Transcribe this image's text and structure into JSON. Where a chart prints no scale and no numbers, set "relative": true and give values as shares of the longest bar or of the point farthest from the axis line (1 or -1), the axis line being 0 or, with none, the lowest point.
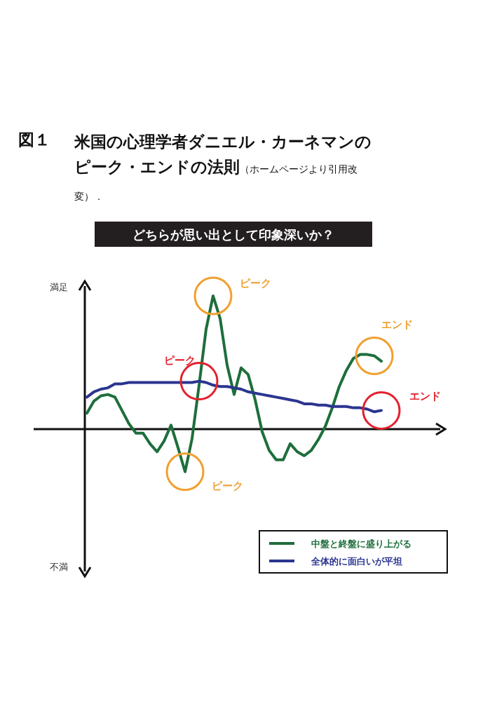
{
  "chart_data": {
    "type": "line",
    "title": "図１　米国の心理学者ダニエル・カーネマンのピーク・エンドの法則",
    "subtitle": "どちらが思い出として印象深いか？",
    "relative": true,
    "legend": "bottom right",
    "marker": "none",
    "categories": [
      null,
      null,
      null,
      null,
      null,
      null,
      null,
      null,
      null,
      null,
      null,
      null,
      null,
      null,
      null,
      null,
      null,
      null,
      null,
      null,
      null,
      null,
      null,
      null,
      null,
      null,
      null,
      null,
      null,
      null,
      null,
      null,
      null,
      null,
      null,
      null,
      null,
      null,
      null,
      null,
      null,
      null,
      null
    ],
    "series": [
      {
        "name": "中盤と終盤に盛り上がる",
        "color": "#1e6e3c",
        "values": [
          0.12,
          0.21,
          0.25,
          0.26,
          0.24,
          0.14,
          0.04,
          -0.03,
          -0.03,
          -0.11,
          -0.17,
          -0.09,
          0.03,
          -0.14,
          -0.32,
          -0.07,
          0.33,
          0.75,
          1,
          0.83,
          0.48,
          0.26,
          0.46,
          0.41,
          0.22,
          -0.02,
          -0.16,
          -0.23,
          -0.23,
          -0.11,
          -0.17,
          -0.2,
          -0.16,
          -0.08,
          0.02,
          0.16,
          0.32,
          0.44,
          0.53,
          0.56,
          0.56,
          0.55,
          0.51
        ]
      },
      {
        "name": "全体的に面白いが平坦",
        "color": "#2b3590",
        "values": [
          0.24,
          0.28,
          0.3,
          0.31,
          0.34,
          0.34,
          0.35,
          0.35,
          0.35,
          0.35,
          0.35,
          0.35,
          0.35,
          0.35,
          0.35,
          0.35,
          0.36,
          0.35,
          0.33,
          0.32,
          0.32,
          0.31,
          0.3,
          0.28,
          0.27,
          0.26,
          0.25,
          0.24,
          0.23,
          0.22,
          0.21,
          0.19,
          0.19,
          0.18,
          0.18,
          0.17,
          0.17,
          0.17,
          0.16,
          0.16,
          0.15,
          0.13,
          0.14
        ]
      }
    ],
    "annotations": [
      "ピーク",
      "ピーク",
      "エンド",
      "ピーク",
      "エンド",
      "（ホームページより引用改変）．",
      "満足",
      "不満"
    ]
  }
}
